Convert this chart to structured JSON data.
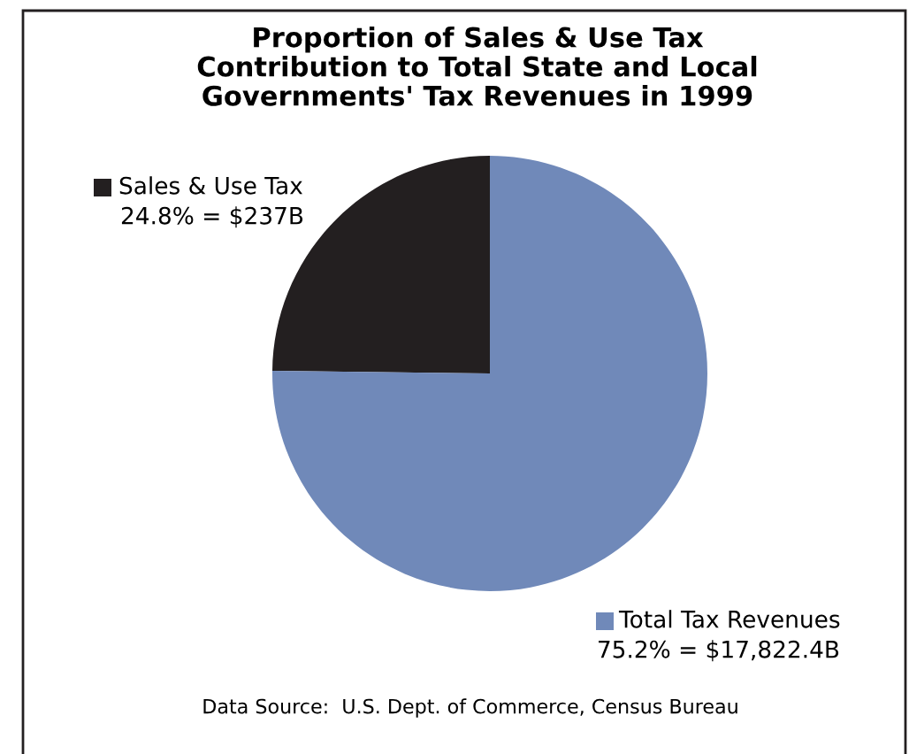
{
  "chart_data": {
    "type": "pie",
    "title": "Proportion of Sales & Use Tax\nContribution to Total State and Local\nGovernments' Tax Revenues in 1999",
    "categories": [
      "Sales & Use Tax",
      "Total Tax Revenues"
    ],
    "values": [
      24.8,
      75.2
    ],
    "colors": [
      "#231f20",
      "#7089b9"
    ],
    "value_labels": [
      "24.8% = $237B",
      "75.2% = $17,822.4B"
    ],
    "legend": "bottom left",
    "annotations": [
      "Data Source:  U.S. Dept. of Commerce, Census Bureau"
    ]
  }
}
